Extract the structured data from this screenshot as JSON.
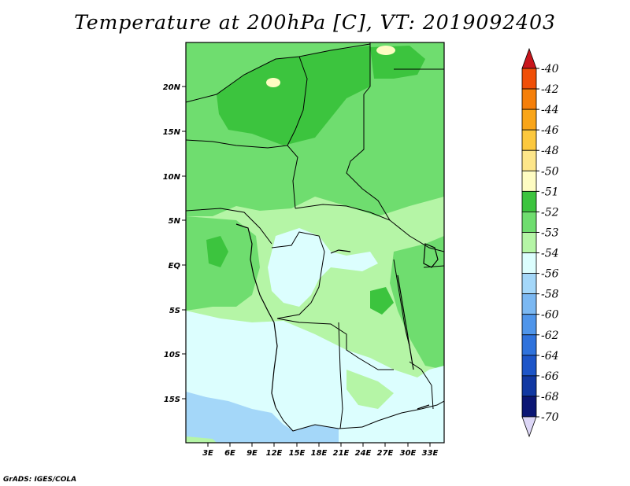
{
  "title": "Temperature at 200hPa [C], VT: 2019092403",
  "credit": "GrADS: IGES/COLA",
  "axes": {
    "lat_labels": [
      "20N",
      "15N",
      "10N",
      "5N",
      "EQ",
      "5S",
      "10S",
      "15S"
    ],
    "lon_labels": [
      "3E",
      "6E",
      "9E",
      "12E",
      "15E",
      "18E",
      "21E",
      "24E",
      "27E",
      "30E",
      "33E"
    ]
  },
  "legend": {
    "levels": [
      {
        "label": "-40",
        "color": "#e8250a"
      },
      {
        "label": "-42",
        "color": "#f04f08"
      },
      {
        "label": "-44",
        "color": "#f57f0a"
      },
      {
        "label": "-46",
        "color": "#f9a519"
      },
      {
        "label": "-48",
        "color": "#fcc83e"
      },
      {
        "label": "-50",
        "color": "#fde68a"
      },
      {
        "label": "-51",
        "color": "#fefcc2"
      },
      {
        "label": "-52",
        "color": "#3cc43e"
      },
      {
        "label": "-53",
        "color": "#6fdd6f"
      },
      {
        "label": "-54",
        "color": "#b5f5a6"
      },
      {
        "label": "-56",
        "color": "#dcfefe"
      },
      {
        "label": "-58",
        "color": "#a4d7f9"
      },
      {
        "label": "-60",
        "color": "#7bb8f2"
      },
      {
        "label": "-62",
        "color": "#4f95ea"
      },
      {
        "label": "-64",
        "color": "#2f72dc"
      },
      {
        "label": "-66",
        "color": "#1d55c8"
      },
      {
        "label": "-68",
        "color": "#1138a2"
      },
      {
        "label": "-70",
        "color": "#0b1674"
      }
    ],
    "overflow_high_color": "#c8161c",
    "overflow_low_color": "#dcd6f6"
  }
}
